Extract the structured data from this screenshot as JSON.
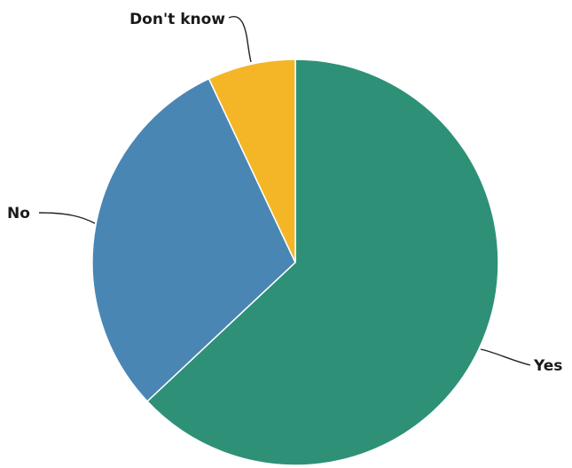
{
  "chart_data": {
    "type": "pie",
    "title": "",
    "start_angle_deg": 0,
    "direction": "clockwise",
    "slices": [
      {
        "label": "Yes",
        "value": 63,
        "color": "#2e9177"
      },
      {
        "label": "No",
        "value": 30,
        "color": "#4a86b4"
      },
      {
        "label": "Don't know",
        "value": 7,
        "color": "#f4b527"
      }
    ],
    "legend": "none (labels with leader lines)"
  }
}
